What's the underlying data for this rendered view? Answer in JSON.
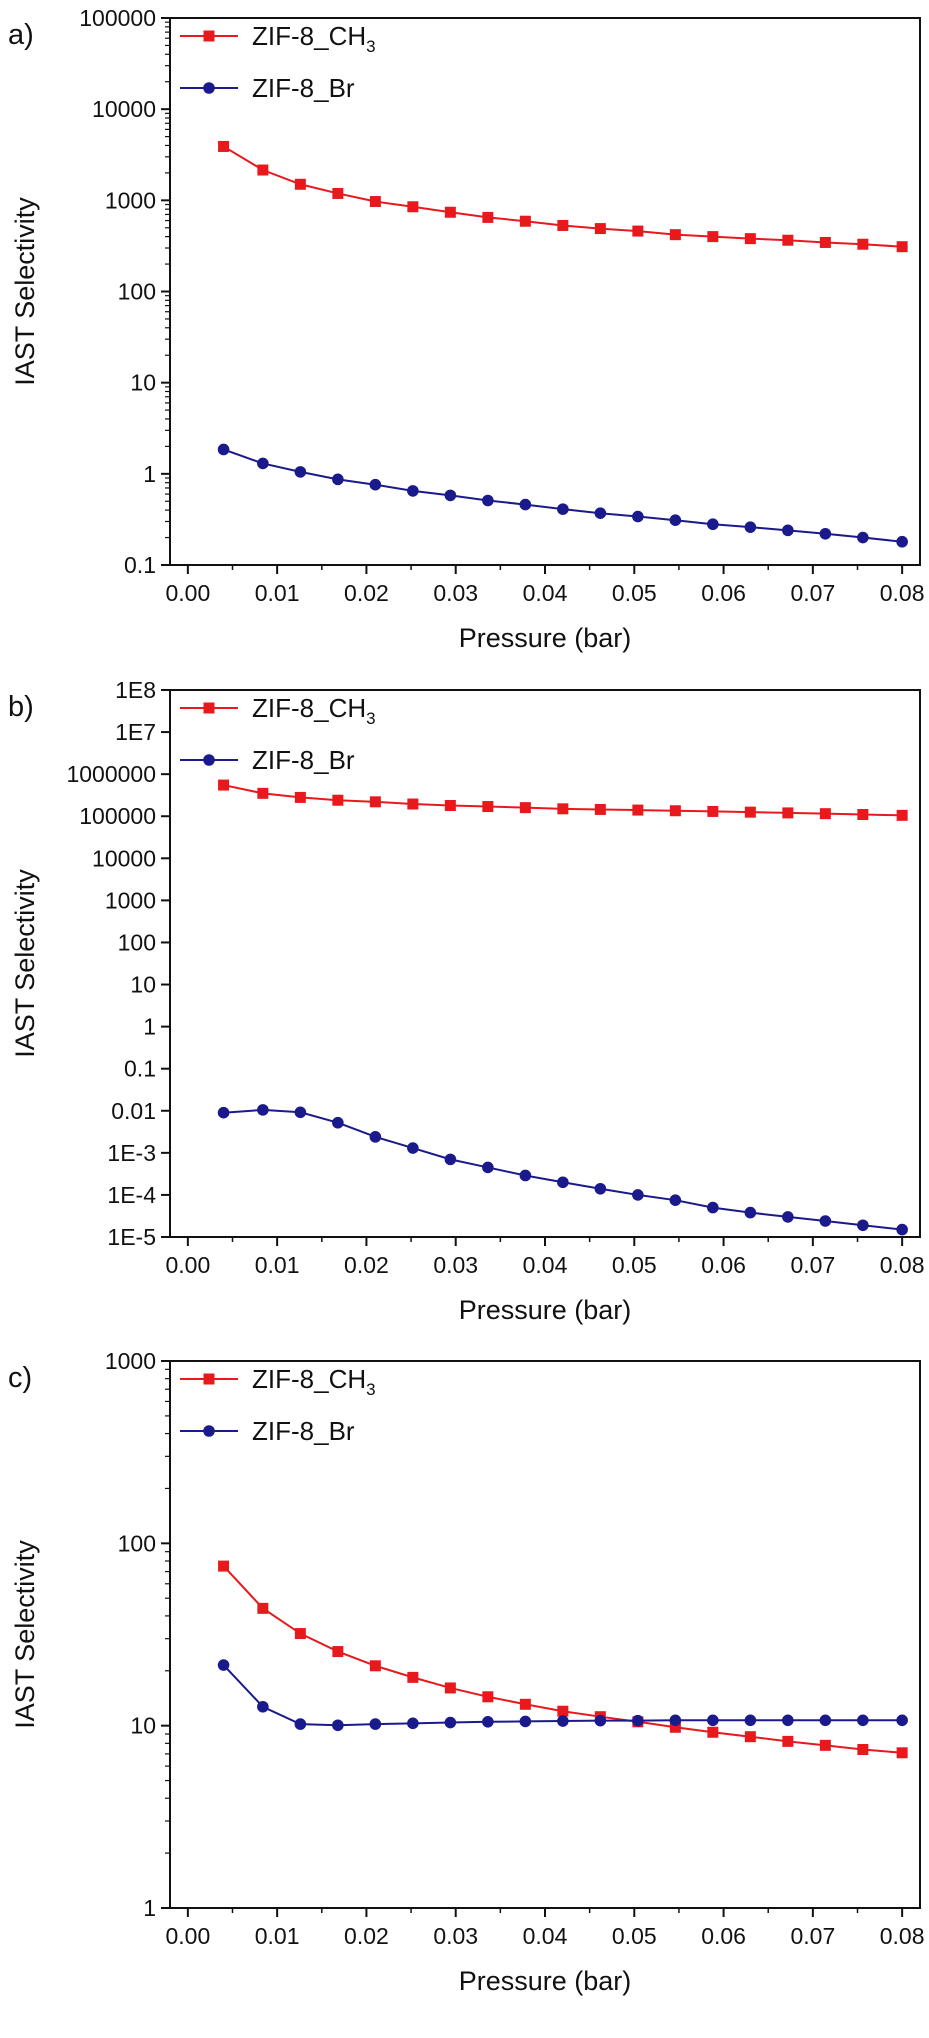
{
  "chart_data": [
    {
      "type": "line",
      "panel_label": "a)",
      "xlabel": "Pressure (bar)",
      "ylabel": "IAST Selectivity",
      "yscale": "log",
      "xlim": [
        0.0,
        0.08
      ],
      "ylim": [
        0.1,
        100000
      ],
      "x_ticks": [
        "0.00",
        "0.01",
        "0.02",
        "0.03",
        "0.04",
        "0.05",
        "0.06",
        "0.07",
        "0.08"
      ],
      "y_ticks": [
        "0.1",
        "1",
        "10",
        "100",
        "1000",
        "10000",
        "100000"
      ],
      "legend": {
        "position": "top-left"
      },
      "grid": false,
      "x": [
        0.004,
        0.0084,
        0.0126,
        0.0168,
        0.021,
        0.0252,
        0.0294,
        0.0336,
        0.0378,
        0.042,
        0.0462,
        0.0504,
        0.0546,
        0.0588,
        0.063,
        0.0672,
        0.0714,
        0.0756,
        0.08
      ],
      "series": [
        {
          "name": "ZIF-8_CH3",
          "label_base": "ZIF-8_CH",
          "label_sub": "3",
          "color": "#e8191c",
          "marker": "square",
          "values": [
            3900,
            2150,
            1500,
            1190,
            970,
            850,
            740,
            650,
            590,
            530,
            490,
            460,
            420,
            400,
            380,
            365,
            345,
            330,
            310
          ]
        },
        {
          "name": "ZIF-8_Br",
          "label_base": "ZIF-8_Br",
          "label_sub": "",
          "color": "#1a1a8c",
          "marker": "circle",
          "values": [
            1.85,
            1.3,
            1.05,
            0.87,
            0.76,
            0.65,
            0.58,
            0.51,
            0.46,
            0.41,
            0.37,
            0.34,
            0.31,
            0.28,
            0.26,
            0.24,
            0.22,
            0.2,
            0.18
          ]
        }
      ]
    },
    {
      "type": "line",
      "panel_label": "b)",
      "xlabel": "Pressure (bar)",
      "ylabel": "IAST Selectivity",
      "yscale": "log",
      "xlim": [
        0.0,
        0.08
      ],
      "ylim": [
        1e-05,
        100000000
      ],
      "x_ticks": [
        "0.00",
        "0.01",
        "0.02",
        "0.03",
        "0.04",
        "0.05",
        "0.06",
        "0.07",
        "0.08"
      ],
      "y_ticks": [
        "1E-5",
        "1E-4",
        "1E-3",
        "0.01",
        "0.1",
        "1",
        "10",
        "100",
        "1000",
        "10000",
        "100000",
        "1000000",
        "1E7",
        "1E8"
      ],
      "legend": {
        "position": "top-left"
      },
      "grid": false,
      "x": [
        0.004,
        0.0084,
        0.0126,
        0.0168,
        0.021,
        0.0252,
        0.0294,
        0.0336,
        0.0378,
        0.042,
        0.0462,
        0.0504,
        0.0546,
        0.0588,
        0.063,
        0.0672,
        0.0714,
        0.0756,
        0.08
      ],
      "series": [
        {
          "name": "ZIF-8_CH3",
          "label_base": "ZIF-8_CH",
          "label_sub": "3",
          "color": "#e8191c",
          "marker": "square",
          "values": [
            550000,
            350000,
            280000,
            240000,
            220000,
            195000,
            180000,
            170000,
            160000,
            150000,
            145000,
            140000,
            135000,
            130000,
            125000,
            120000,
            115000,
            110000,
            105000
          ]
        },
        {
          "name": "ZIF-8_Br",
          "label_base": "ZIF-8_Br",
          "label_sub": "",
          "color": "#1a1a8c",
          "marker": "circle",
          "values": [
            0.009,
            0.0105,
            0.0092,
            0.0052,
            0.0024,
            0.0013,
            0.0007,
            0.00045,
            0.00029,
            0.0002,
            0.00014,
            0.0001,
            7.5e-05,
            5e-05,
            3.8e-05,
            3e-05,
            2.4e-05,
            1.9e-05,
            1.5e-05
          ]
        }
      ]
    },
    {
      "type": "line",
      "panel_label": "c)",
      "xlabel": "Pressure (bar)",
      "ylabel": "IAST Selectivity",
      "yscale": "log",
      "xlim": [
        0.0,
        0.08
      ],
      "ylim": [
        1,
        1000
      ],
      "x_ticks": [
        "0.00",
        "0.01",
        "0.02",
        "0.03",
        "0.04",
        "0.05",
        "0.06",
        "0.07",
        "0.08"
      ],
      "y_ticks": [
        "1",
        "10",
        "100",
        "1000"
      ],
      "legend": {
        "position": "top-left"
      },
      "grid": false,
      "x": [
        0.004,
        0.0084,
        0.0126,
        0.0168,
        0.021,
        0.0252,
        0.0294,
        0.0336,
        0.0378,
        0.042,
        0.0462,
        0.0504,
        0.0546,
        0.0588,
        0.063,
        0.0672,
        0.0714,
        0.0756,
        0.08
      ],
      "series": [
        {
          "name": "ZIF-8_CH3",
          "label_base": "ZIF-8_CH",
          "label_sub": "3",
          "color": "#e8191c",
          "marker": "square",
          "values": [
            75,
            44,
            32,
            25.5,
            21.3,
            18.4,
            16.1,
            14.4,
            13.1,
            12.0,
            11.2,
            10.5,
            9.8,
            9.2,
            8.7,
            8.2,
            7.8,
            7.4,
            7.1
          ]
        },
        {
          "name": "ZIF-8_Br",
          "label_base": "ZIF-8_Br",
          "label_sub": "",
          "color": "#1a1a8c",
          "marker": "circle",
          "values": [
            21.5,
            12.7,
            10.2,
            10.05,
            10.2,
            10.3,
            10.4,
            10.5,
            10.55,
            10.6,
            10.65,
            10.65,
            10.7,
            10.7,
            10.7,
            10.7,
            10.7,
            10.7,
            10.7
          ]
        }
      ]
    }
  ]
}
